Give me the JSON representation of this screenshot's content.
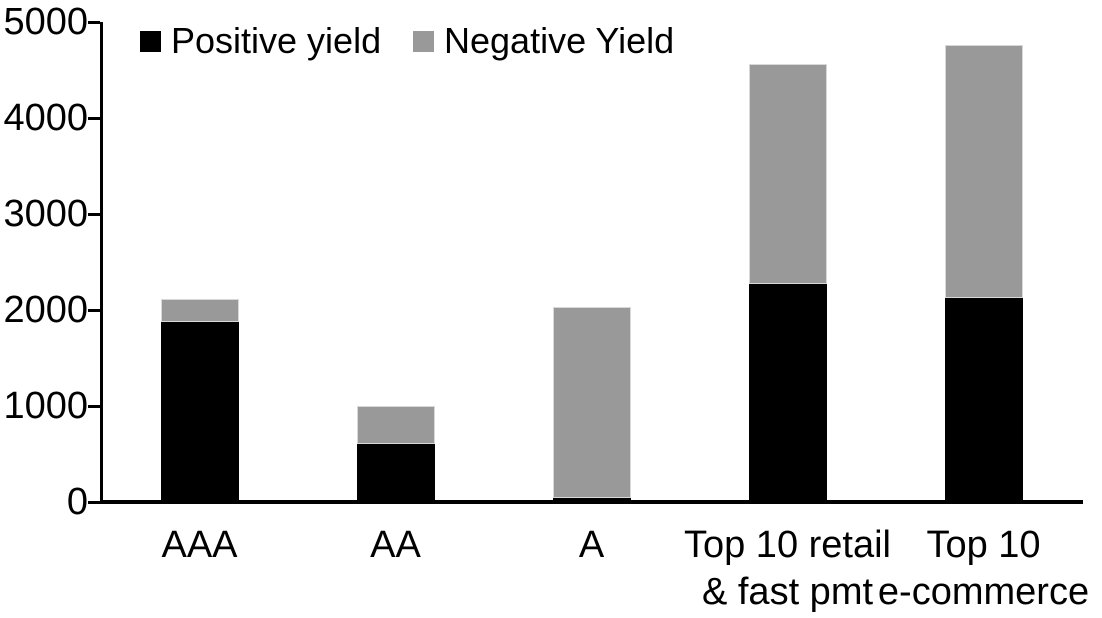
{
  "chart_data": {
    "type": "bar",
    "stacked": true,
    "title": "",
    "xlabel": "",
    "ylabel": "",
    "categories": [
      "AAA",
      "AA",
      "A",
      "Top 10 retail\n& fast pmt",
      "Top 10\ne-commerce"
    ],
    "series": [
      {
        "name": "Positive yield",
        "color": "#000000",
        "values": [
          1880,
          600,
          45,
          2270,
          2130
        ]
      },
      {
        "name": "Negative Yield",
        "color": "#999999",
        "values": [
          230,
          400,
          1985,
          2290,
          2630
        ]
      }
    ],
    "totals": [
      2110,
      1000,
      2030,
      4560,
      4760
    ],
    "ylim": [
      0,
      5000
    ],
    "yticks": [
      0,
      1000,
      2000,
      3000,
      4000,
      5000
    ],
    "grid": false,
    "legend_position": "top-left",
    "axis_color": "#000000",
    "background_color": "#ffffff"
  }
}
